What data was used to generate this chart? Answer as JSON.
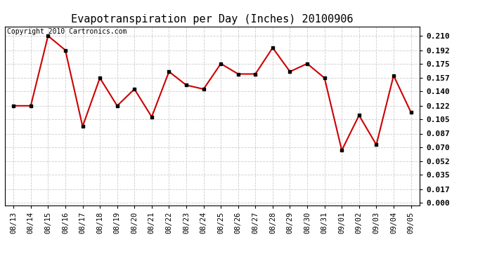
{
  "title": "Evapotranspiration per Day (Inches) 20100906",
  "copyright_text": "Copyright 2010 Cartronics.com",
  "dates": [
    "08/13",
    "08/14",
    "08/15",
    "08/16",
    "08/17",
    "08/18",
    "08/19",
    "08/20",
    "08/21",
    "08/22",
    "08/23",
    "08/24",
    "08/25",
    "08/26",
    "08/27",
    "08/28",
    "08/29",
    "08/30",
    "08/31",
    "09/01",
    "09/02",
    "09/03",
    "09/04",
    "09/05"
  ],
  "values": [
    0.122,
    0.122,
    0.21,
    0.192,
    0.096,
    0.157,
    0.122,
    0.143,
    0.108,
    0.165,
    0.148,
    0.143,
    0.175,
    0.162,
    0.162,
    0.195,
    0.165,
    0.175,
    0.157,
    0.066,
    0.11,
    0.073,
    0.16,
    0.114
  ],
  "line_color": "#cc0000",
  "marker": "s",
  "marker_size": 4,
  "marker_color": "#000000",
  "bg_color": "#ffffff",
  "grid_color": "#cccccc",
  "y_ticks": [
    0.0,
    0.017,
    0.035,
    0.052,
    0.07,
    0.087,
    0.105,
    0.122,
    0.14,
    0.157,
    0.175,
    0.192,
    0.21
  ],
  "ylim": [
    -0.003,
    0.222
  ],
  "title_fontsize": 11,
  "copyright_fontsize": 7,
  "tick_fontsize": 7.5,
  "ytick_fontsize": 8
}
